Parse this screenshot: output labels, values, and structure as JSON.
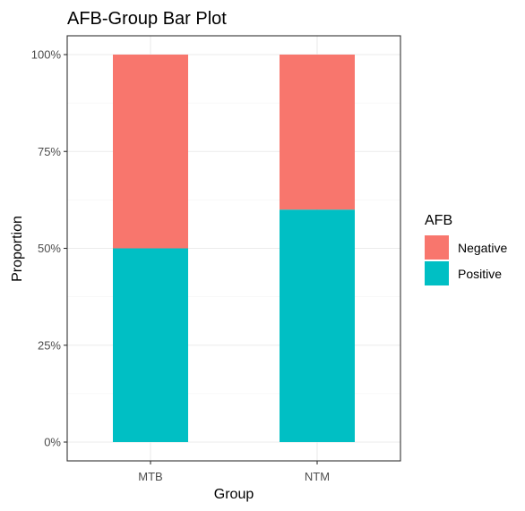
{
  "chart_data": {
    "type": "bar",
    "stacked": true,
    "title": "AFB-Group Bar Plot",
    "xlabel": "Group",
    "ylabel": "Proportion",
    "categories": [
      "MTB",
      "NTM"
    ],
    "series": [
      {
        "name": "Positive",
        "color": "#00BFC4",
        "values": [
          0.5,
          0.6
        ]
      },
      {
        "name": "Negative",
        "color": "#F8766D",
        "values": [
          0.5,
          0.4
        ]
      }
    ],
    "ylim": [
      0,
      1
    ],
    "yticks": [
      0,
      0.25,
      0.5,
      0.75,
      1
    ],
    "ytick_labels": [
      "0%",
      "25%",
      "50%",
      "75%",
      "100%"
    ],
    "grid": true,
    "legend": {
      "title": "AFB",
      "position": "right",
      "entries": [
        {
          "label": "Negative",
          "color": "#F8766D"
        },
        {
          "label": "Positive",
          "color": "#00BFC4"
        }
      ]
    }
  }
}
